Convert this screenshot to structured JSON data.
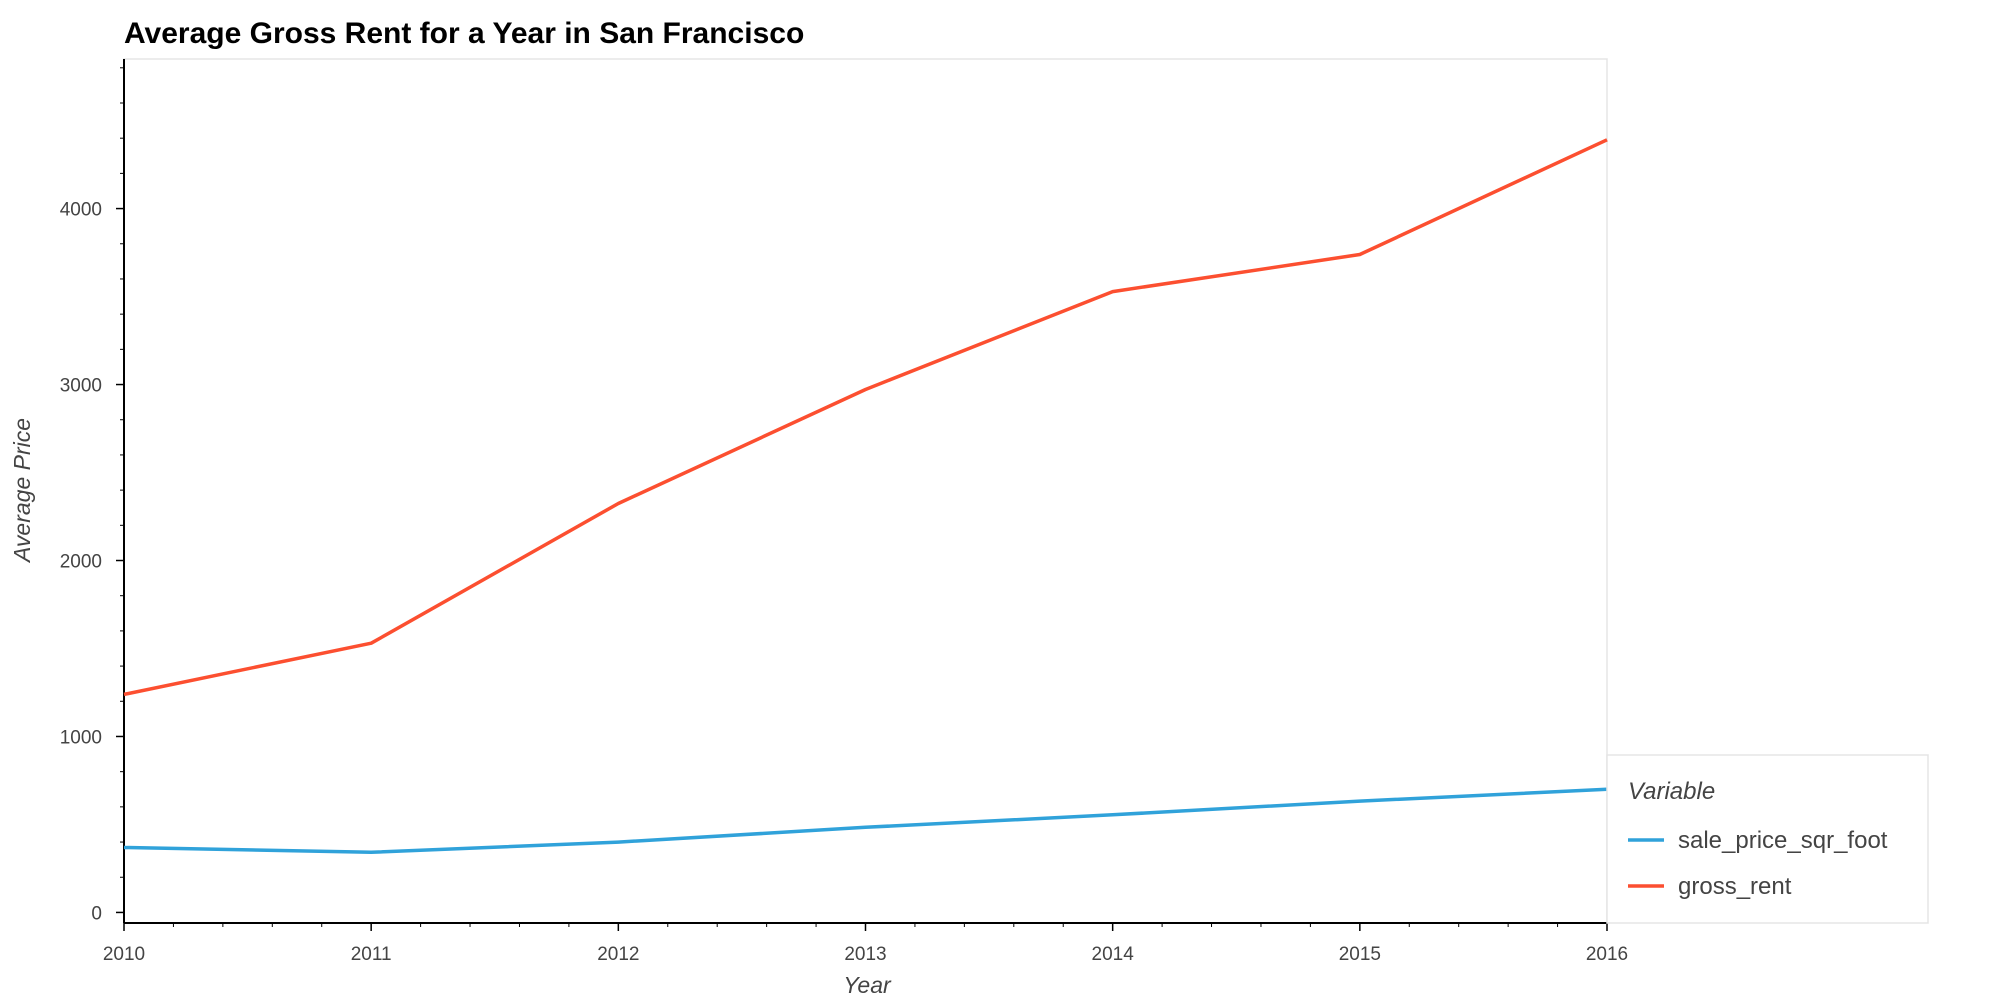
{
  "chart_data": {
    "type": "line",
    "title": "Average Gross Rent for a Year in San Francisco",
    "xlabel": "Year",
    "ylabel": "Average Price",
    "x": [
      2010,
      2011,
      2012,
      2013,
      2014,
      2015,
      2016
    ],
    "x_tick_labels": [
      "2010",
      "2011",
      "2012",
      "2013",
      "2014",
      "2015",
      "2016"
    ],
    "xlim": [
      2010,
      2016
    ],
    "ylim": [
      -60,
      4850
    ],
    "y_ticks": [
      0,
      1000,
      2000,
      3000,
      4000
    ],
    "y_tick_labels": [
      "0",
      "1000",
      "2000",
      "3000",
      "4000"
    ],
    "grid": false,
    "legend": {
      "title": "Variable",
      "placement": "bottom-right-outside"
    },
    "series": [
      {
        "name": "sale_price_sqr_foot",
        "color": "#30a2da",
        "values": [
          369,
          342,
          400,
          484,
          555,
          633,
          700
        ]
      },
      {
        "name": "gross_rent",
        "color": "#fc4f30",
        "values": [
          1239,
          1530,
          2324,
          2972,
          3528,
          3739,
          4391
        ]
      }
    ]
  }
}
